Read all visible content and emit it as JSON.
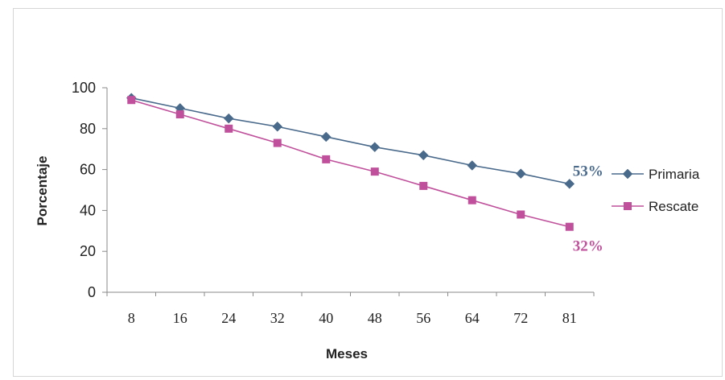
{
  "chart_data": {
    "type": "line",
    "title": "",
    "xlabel": "Meses",
    "ylabel": "Porcentaje",
    "categories": [
      "8",
      "16",
      "24",
      "32",
      "40",
      "48",
      "56",
      "64",
      "72",
      "81"
    ],
    "ylim": [
      0,
      100
    ],
    "yticks": [
      "0",
      "20",
      "40",
      "60",
      "80",
      "100"
    ],
    "grid": false,
    "legend_position": "right",
    "series": [
      {
        "name": "Primaria",
        "color": "#4a6a8c",
        "marker": "diamond",
        "values": [
          95,
          90,
          85,
          81,
          76,
          71,
          67,
          62,
          58,
          53
        ],
        "end_label": "53%"
      },
      {
        "name": "Rescate",
        "color": "#c0509b",
        "marker": "square",
        "values": [
          94,
          87,
          80,
          73,
          65,
          59,
          52,
          45,
          38,
          32
        ],
        "end_label": "32%"
      }
    ]
  }
}
